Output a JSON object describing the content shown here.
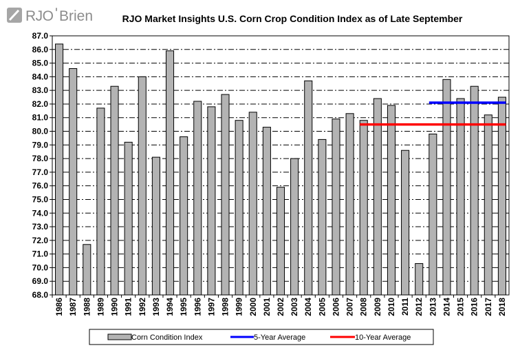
{
  "logo": {
    "prefix": "RJO",
    "apostrophe": "'",
    "suffix": "Brien",
    "color": "#8c8c8c"
  },
  "chart_data": {
    "type": "bar",
    "title": "RJO Market Insights U.S. Corn Crop Condition Index as of Late September",
    "xlabel": "",
    "ylabel": "",
    "ylim": [
      68.0,
      87.0
    ],
    "ytick_step": 1.0,
    "grid": true,
    "legend_position": "bottom",
    "categories": [
      "1986",
      "1987",
      "1988",
      "1989",
      "1990",
      "1991",
      "1992",
      "1993",
      "1994",
      "1995",
      "1996",
      "1997",
      "1998",
      "1999",
      "2000",
      "2001",
      "2002",
      "2003",
      "2004",
      "2005",
      "2006",
      "2007",
      "2008",
      "2009",
      "2010",
      "2011",
      "2012",
      "2013",
      "2014",
      "2015",
      "2016",
      "2017",
      "2018"
    ],
    "series": [
      {
        "name": "Corn Condition Index",
        "type": "bar",
        "color": "#b3b3b3",
        "values": [
          86.4,
          84.6,
          71.7,
          81.7,
          83.3,
          79.2,
          84.0,
          78.1,
          85.9,
          79.6,
          82.2,
          81.8,
          82.7,
          80.8,
          81.4,
          80.3,
          75.9,
          78.0,
          83.7,
          79.4,
          80.9,
          81.3,
          80.8,
          82.4,
          81.9,
          78.6,
          70.3,
          79.8,
          83.8,
          82.4,
          83.3,
          81.2,
          82.5
        ]
      },
      {
        "name": "5-Year Average",
        "type": "line",
        "color": "#0000ff",
        "x_start": "2013",
        "x_end": "2018",
        "value": 82.1
      },
      {
        "name": "10-Year Average",
        "type": "line",
        "color": "#ff0000",
        "x_start": "2008",
        "x_end": "2018",
        "value": 80.5
      }
    ]
  }
}
